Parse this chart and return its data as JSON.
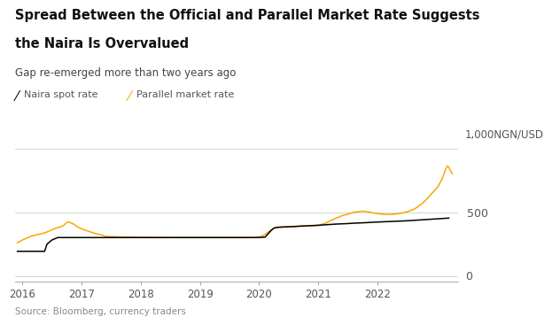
{
  "title_line1": "Spread Between the Official and Parallel Market Rate Suggests",
  "title_line2": "the Naira Is Overvalued",
  "subtitle": "Gap re-emerged more than two years ago",
  "legend_naira": "Naira spot rate",
  "legend_parallel": "Parallel market rate",
  "ylabel": "1,000NGN/USD",
  "source": "Source: Bloomberg, currency traders",
  "naira_color": "#000000",
  "parallel_color": "#F5A800",
  "background_color": "#FFFFFF",
  "ylim": [
    -40,
    1050
  ],
  "yticks": [
    0,
    500,
    1000
  ],
  "ytick_labels": [
    "0",
    "500",
    "1,000"
  ],
  "xstart": 2015.88,
  "xend": 2023.35,
  "xticks": [
    2016,
    2017,
    2018,
    2019,
    2020,
    2021,
    2022
  ],
  "naira_data": [
    [
      2015.92,
      197
    ],
    [
      2015.96,
      197
    ],
    [
      2016.0,
      197
    ],
    [
      2016.05,
      197
    ],
    [
      2016.1,
      197
    ],
    [
      2016.15,
      197
    ],
    [
      2016.2,
      197
    ],
    [
      2016.25,
      197
    ],
    [
      2016.3,
      197
    ],
    [
      2016.35,
      197
    ],
    [
      2016.38,
      197
    ],
    [
      2016.42,
      253
    ],
    [
      2016.5,
      285
    ],
    [
      2016.6,
      305
    ],
    [
      2016.65,
      305
    ],
    [
      2016.7,
      305
    ],
    [
      2016.8,
      305
    ],
    [
      2016.9,
      305
    ],
    [
      2017.0,
      305
    ],
    [
      2017.1,
      305
    ],
    [
      2017.2,
      305
    ],
    [
      2017.3,
      305
    ],
    [
      2017.35,
      305
    ],
    [
      2017.4,
      305
    ],
    [
      2017.5,
      305
    ],
    [
      2017.6,
      305
    ],
    [
      2017.7,
      305
    ],
    [
      2017.8,
      305
    ],
    [
      2017.9,
      305
    ],
    [
      2018.0,
      305
    ],
    [
      2018.1,
      305
    ],
    [
      2018.2,
      305
    ],
    [
      2018.3,
      305
    ],
    [
      2018.4,
      305
    ],
    [
      2018.5,
      305
    ],
    [
      2018.6,
      305
    ],
    [
      2018.7,
      305
    ],
    [
      2018.8,
      305
    ],
    [
      2018.9,
      305
    ],
    [
      2019.0,
      305
    ],
    [
      2019.1,
      305
    ],
    [
      2019.2,
      305
    ],
    [
      2019.3,
      305
    ],
    [
      2019.4,
      305
    ],
    [
      2019.5,
      305
    ],
    [
      2019.6,
      305
    ],
    [
      2019.7,
      305
    ],
    [
      2019.8,
      305
    ],
    [
      2019.9,
      305
    ],
    [
      2020.0,
      306
    ],
    [
      2020.05,
      307
    ],
    [
      2020.1,
      308
    ],
    [
      2020.2,
      360
    ],
    [
      2020.25,
      380
    ],
    [
      2020.3,
      385
    ],
    [
      2020.4,
      388
    ],
    [
      2020.5,
      390
    ],
    [
      2020.6,
      392
    ],
    [
      2020.7,
      395
    ],
    [
      2020.8,
      397
    ],
    [
      2020.9,
      399
    ],
    [
      2021.0,
      401
    ],
    [
      2021.1,
      405
    ],
    [
      2021.2,
      408
    ],
    [
      2021.3,
      411
    ],
    [
      2021.4,
      413
    ],
    [
      2021.5,
      415
    ],
    [
      2021.6,
      418
    ],
    [
      2021.7,
      420
    ],
    [
      2021.8,
      422
    ],
    [
      2021.9,
      425
    ],
    [
      2022.0,
      427
    ],
    [
      2022.1,
      429
    ],
    [
      2022.2,
      431
    ],
    [
      2022.3,
      433
    ],
    [
      2022.4,
      435
    ],
    [
      2022.5,
      437
    ],
    [
      2022.6,
      440
    ],
    [
      2022.7,
      443
    ],
    [
      2022.8,
      446
    ],
    [
      2022.9,
      449
    ],
    [
      2023.0,
      452
    ],
    [
      2023.1,
      455
    ],
    [
      2023.2,
      458
    ]
  ],
  "parallel_data": [
    [
      2015.92,
      265
    ],
    [
      2016.0,
      285
    ],
    [
      2016.05,
      295
    ],
    [
      2016.1,
      305
    ],
    [
      2016.15,
      315
    ],
    [
      2016.2,
      322
    ],
    [
      2016.25,
      328
    ],
    [
      2016.3,
      332
    ],
    [
      2016.35,
      338
    ],
    [
      2016.4,
      345
    ],
    [
      2016.45,
      355
    ],
    [
      2016.5,
      365
    ],
    [
      2016.55,
      375
    ],
    [
      2016.6,
      383
    ],
    [
      2016.65,
      390
    ],
    [
      2016.7,
      400
    ],
    [
      2016.72,
      410
    ],
    [
      2016.75,
      420
    ],
    [
      2016.78,
      428
    ],
    [
      2016.8,
      425
    ],
    [
      2016.85,
      415
    ],
    [
      2016.88,
      408
    ],
    [
      2016.9,
      400
    ],
    [
      2016.92,
      393
    ],
    [
      2016.95,
      385
    ],
    [
      2017.0,
      375
    ],
    [
      2017.05,
      365
    ],
    [
      2017.1,
      358
    ],
    [
      2017.15,
      350
    ],
    [
      2017.2,
      342
    ],
    [
      2017.25,
      335
    ],
    [
      2017.3,
      330
    ],
    [
      2017.35,
      325
    ],
    [
      2017.38,
      318
    ],
    [
      2017.4,
      315
    ],
    [
      2017.45,
      313
    ],
    [
      2017.5,
      312
    ],
    [
      2017.55,
      312
    ],
    [
      2017.6,
      311
    ],
    [
      2017.7,
      310
    ],
    [
      2017.8,
      310
    ],
    [
      2017.9,
      309
    ],
    [
      2018.0,
      308
    ],
    [
      2018.1,
      307
    ],
    [
      2018.2,
      307
    ],
    [
      2018.3,
      306
    ],
    [
      2018.4,
      306
    ],
    [
      2018.5,
      305
    ],
    [
      2018.6,
      305
    ],
    [
      2018.7,
      305
    ],
    [
      2018.8,
      305
    ],
    [
      2018.9,
      305
    ],
    [
      2019.0,
      305
    ],
    [
      2019.1,
      305
    ],
    [
      2019.2,
      305
    ],
    [
      2019.3,
      305
    ],
    [
      2019.4,
      305
    ],
    [
      2019.5,
      305
    ],
    [
      2019.6,
      306
    ],
    [
      2019.7,
      306
    ],
    [
      2019.8,
      306
    ],
    [
      2019.9,
      306
    ],
    [
      2020.0,
      307
    ],
    [
      2020.05,
      318
    ],
    [
      2020.1,
      330
    ],
    [
      2020.15,
      348
    ],
    [
      2020.2,
      362
    ],
    [
      2020.22,
      370
    ],
    [
      2020.25,
      378
    ],
    [
      2020.28,
      383
    ],
    [
      2020.3,
      385
    ],
    [
      2020.35,
      387
    ],
    [
      2020.4,
      388
    ],
    [
      2020.5,
      390
    ],
    [
      2020.6,
      392
    ],
    [
      2020.7,
      395
    ],
    [
      2020.8,
      398
    ],
    [
      2020.9,
      400
    ],
    [
      2021.0,
      403
    ],
    [
      2021.05,
      408
    ],
    [
      2021.1,
      415
    ],
    [
      2021.15,
      425
    ],
    [
      2021.2,
      438
    ],
    [
      2021.25,
      448
    ],
    [
      2021.3,
      458
    ],
    [
      2021.35,
      468
    ],
    [
      2021.4,
      477
    ],
    [
      2021.45,
      483
    ],
    [
      2021.5,
      490
    ],
    [
      2021.55,
      497
    ],
    [
      2021.6,
      503
    ],
    [
      2021.65,
      507
    ],
    [
      2021.7,
      510
    ],
    [
      2021.75,
      512
    ],
    [
      2021.8,
      510
    ],
    [
      2021.85,
      506
    ],
    [
      2021.9,
      500
    ],
    [
      2021.95,
      497
    ],
    [
      2022.0,
      494
    ],
    [
      2022.05,
      490
    ],
    [
      2022.1,
      488
    ],
    [
      2022.15,
      487
    ],
    [
      2022.2,
      487
    ],
    [
      2022.25,
      488
    ],
    [
      2022.3,
      490
    ],
    [
      2022.35,
      493
    ],
    [
      2022.4,
      497
    ],
    [
      2022.45,
      502
    ],
    [
      2022.5,
      508
    ],
    [
      2022.55,
      516
    ],
    [
      2022.6,
      525
    ],
    [
      2022.65,
      538
    ],
    [
      2022.7,
      555
    ],
    [
      2022.75,
      572
    ],
    [
      2022.8,
      595
    ],
    [
      2022.85,
      618
    ],
    [
      2022.9,
      645
    ],
    [
      2022.95,
      670
    ],
    [
      2023.0,
      695
    ],
    [
      2023.03,
      715
    ],
    [
      2023.05,
      735
    ],
    [
      2023.08,
      758
    ],
    [
      2023.1,
      782
    ],
    [
      2023.12,
      808
    ],
    [
      2023.14,
      835
    ],
    [
      2023.16,
      855
    ],
    [
      2023.18,
      868
    ],
    [
      2023.2,
      858
    ],
    [
      2023.22,
      838
    ],
    [
      2023.24,
      820
    ],
    [
      2023.26,
      808
    ]
  ]
}
